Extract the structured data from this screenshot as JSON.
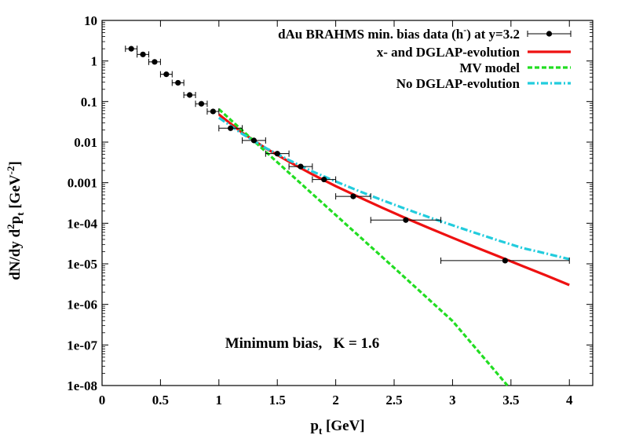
{
  "chart_data": {
    "type": "scatter",
    "xlabel": "p",
    "xlabel_sub": "t",
    "xlabel_unit": " [GeV]",
    "ylabel_main": "dN/dy d",
    "ylabel_sup2": "2",
    "ylabel_p": "p",
    "ylabel_sub": "t",
    "ylabel_unit": " [GeV",
    "ylabel_sup": "-2",
    "ylabel_close": "]",
    "xlim": [
      0,
      4.2
    ],
    "ylim": [
      1e-08,
      10
    ],
    "yscale": "log",
    "x_ticks": [
      0,
      0.5,
      1,
      1.5,
      2,
      2.5,
      3,
      3.5,
      4
    ],
    "x_tick_labels": [
      "0",
      "0.5",
      "1",
      "1.5",
      "2",
      "2.5",
      "3",
      "3.5",
      "4"
    ],
    "y_ticks": [
      1e-08,
      1e-07,
      1e-06,
      1e-05,
      0.0001,
      0.001,
      0.01,
      0.1,
      1,
      10
    ],
    "y_tick_labels": [
      "1e-08",
      "1e-07",
      "1e-06",
      "1e-05",
      "1e-04",
      "0.001",
      "0.01",
      "0.1",
      "1",
      "10"
    ],
    "legend_position": "top-right",
    "annotation": "Minimum bias,   K = 1.6",
    "data_series": {
      "name_pre": "dAu BRAHMS min. bias data (h",
      "name_sup": "-",
      "name_post": ") at y=3.2",
      "color": "#000000",
      "points": [
        {
          "x": 0.25,
          "y": 2.0,
          "xerr": 0.05,
          "yerr": 0.25
        },
        {
          "x": 0.35,
          "y": 1.45,
          "xerr": 0.05,
          "yerr": 0.2
        },
        {
          "x": 0.45,
          "y": 0.95,
          "xerr": 0.05,
          "yerr": 0.12
        },
        {
          "x": 0.55,
          "y": 0.47,
          "xerr": 0.05,
          "yerr": 0.06
        },
        {
          "x": 0.65,
          "y": 0.29,
          "xerr": 0.05,
          "yerr": 0.035
        },
        {
          "x": 0.75,
          "y": 0.145,
          "xerr": 0.05,
          "yerr": 0.018
        },
        {
          "x": 0.85,
          "y": 0.088,
          "xerr": 0.05,
          "yerr": 0.011
        },
        {
          "x": 0.95,
          "y": 0.057,
          "xerr": 0.05,
          "yerr": 0.007
        },
        {
          "x": 1.1,
          "y": 0.022,
          "xerr": 0.1,
          "yerr": 0.003
        },
        {
          "x": 1.3,
          "y": 0.011,
          "xerr": 0.1,
          "yerr": 0.0014
        },
        {
          "x": 1.5,
          "y": 0.0052,
          "xerr": 0.1,
          "yerr": 0.0007
        },
        {
          "x": 1.7,
          "y": 0.0025,
          "xerr": 0.1,
          "yerr": 0.00035
        },
        {
          "x": 1.9,
          "y": 0.0012,
          "xerr": 0.1,
          "yerr": 0.00017
        },
        {
          "x": 2.15,
          "y": 0.00046,
          "xerr": 0.15,
          "yerr": 6e-05
        },
        {
          "x": 2.6,
          "y": 0.00012,
          "xerr": 0.3,
          "yerr": 1.6e-05
        },
        {
          "x": 3.45,
          "y": 1.2e-05,
          "xerr": 0.55,
          "yerr": 1.6e-06
        }
      ]
    },
    "curves": [
      {
        "name": "x- and DGLAP-evolution",
        "color": "#ee1111",
        "style": "solid",
        "x": [
          1.0,
          1.2,
          1.4,
          1.6,
          1.8,
          2.0,
          2.2,
          2.4,
          2.6,
          2.8,
          3.0,
          3.2,
          3.4,
          3.6,
          3.8,
          4.0
        ],
        "y": [
          0.048,
          0.017,
          0.0071,
          0.0033,
          0.0016,
          0.00082,
          0.00044,
          0.00024,
          0.000133,
          7.6e-05,
          4.4e-05,
          2.55e-05,
          1.5e-05,
          8.8e-06,
          5.2e-06,
          3e-06
        ]
      },
      {
        "name": "MV model",
        "color": "#22dd22",
        "style": "dotted",
        "x": [
          1.0,
          1.5,
          2.0,
          2.5,
          3.0,
          3.47
        ],
        "y": [
          0.065,
          0.0032,
          0.00016,
          8e-06,
          3.9e-07,
          1e-08
        ]
      },
      {
        "name": "No DGLAP-evolution",
        "color": "#22ccdd",
        "style": "dashdot",
        "x": [
          1.0,
          1.2,
          1.4,
          1.6,
          1.8,
          2.0,
          2.2,
          2.4,
          2.6,
          2.8,
          3.0,
          3.2,
          3.4,
          3.6,
          3.8,
          4.0
        ],
        "y": [
          0.04,
          0.016,
          0.0072,
          0.0036,
          0.0019,
          0.00107,
          0.00062,
          0.00037,
          0.000225,
          0.00014,
          8.9e-05,
          5.7e-05,
          3.7e-05,
          2.45e-05,
          1.8e-05,
          1.3e-05
        ]
      }
    ]
  }
}
